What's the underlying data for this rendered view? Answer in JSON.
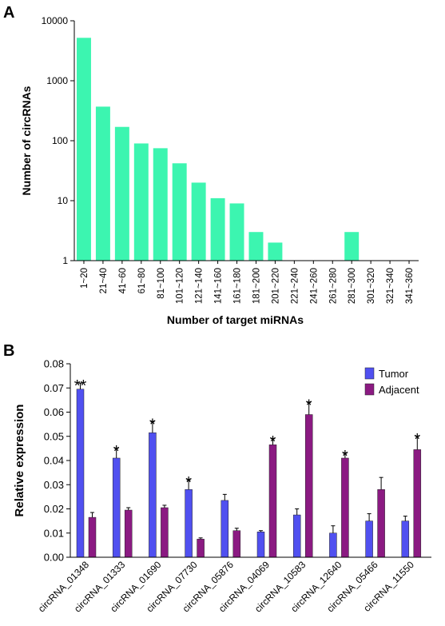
{
  "chart_data": [
    {
      "panel": "A",
      "type": "bar",
      "title": "",
      "xlabel": "Number of target miRNAs",
      "ylabel": "Number of circRNAs",
      "yscale": "log",
      "ylim": [
        1,
        10000
      ],
      "yticks": [
        "1",
        "10",
        "100",
        "1000",
        "10000"
      ],
      "grid": false,
      "bar_color": "#3cf5b0",
      "categories": [
        "1~20",
        "21~40",
        "41~60",
        "61~80",
        "81~100",
        "101~120",
        "121~140",
        "141~160",
        "161~180",
        "181~200",
        "201~220",
        "221~240",
        "241~260",
        "261~280",
        "281~300",
        "301~320",
        "321~340",
        "341~360"
      ],
      "values": [
        5200,
        370,
        170,
        90,
        75,
        42,
        20,
        11,
        9,
        3,
        2,
        0,
        0,
        0,
        3,
        0,
        0,
        0
      ]
    },
    {
      "panel": "B",
      "type": "bar",
      "title": "",
      "xlabel": "",
      "ylabel": "Relative expression",
      "ylim": [
        0,
        0.08
      ],
      "yticks": [
        "0.00",
        "0.01",
        "0.02",
        "0.03",
        "0.04",
        "0.05",
        "0.06",
        "0.07",
        "0.08"
      ],
      "grid": false,
      "legend": {
        "position": "top-right"
      },
      "categories": [
        "circRNA_01348",
        "circRNA_01333",
        "circRNA_01690",
        "circRNA_07730",
        "circRNA_05876",
        "circRNA_04069",
        "circRNA_10583",
        "circRNA_12640",
        "circRNA_05466",
        "circRNA_11550"
      ],
      "series": [
        {
          "name": "Tumor",
          "color": "#5050f0",
          "values": [
            0.0695,
            0.041,
            0.0515,
            0.028,
            0.0235,
            0.0105,
            0.0175,
            0.01,
            0.015,
            0.015
          ],
          "errors": [
            0.0025,
            0.004,
            0.0045,
            0.004,
            0.0025,
            0.0005,
            0.0025,
            0.003,
            0.003,
            0.002
          ]
        },
        {
          "name": "Adjacent",
          "color": "#8b1a82",
          "values": [
            0.0165,
            0.0195,
            0.0205,
            0.0075,
            0.011,
            0.0465,
            0.059,
            0.041,
            0.028,
            0.0445
          ],
          "errors": [
            0.002,
            0.001,
            0.001,
            0.0005,
            0.001,
            0.0025,
            0.005,
            0.002,
            0.005,
            0.0055
          ]
        }
      ],
      "annotations": [
        {
          "category": "circRNA_01348",
          "series": "Tumor",
          "text": "**"
        },
        {
          "category": "circRNA_01333",
          "series": "Tumor",
          "text": "*"
        },
        {
          "category": "circRNA_01690",
          "series": "Tumor",
          "text": "*"
        },
        {
          "category": "circRNA_07730",
          "series": "Tumor",
          "text": "*"
        },
        {
          "category": "circRNA_04069",
          "series": "Adjacent",
          "text": "*"
        },
        {
          "category": "circRNA_10583",
          "series": "Adjacent",
          "text": "*"
        },
        {
          "category": "circRNA_12640",
          "series": "Adjacent",
          "text": "*"
        },
        {
          "category": "circRNA_11550",
          "series": "Adjacent",
          "text": "*"
        }
      ]
    }
  ],
  "panel_labels": {
    "a": "A",
    "b": "B"
  }
}
